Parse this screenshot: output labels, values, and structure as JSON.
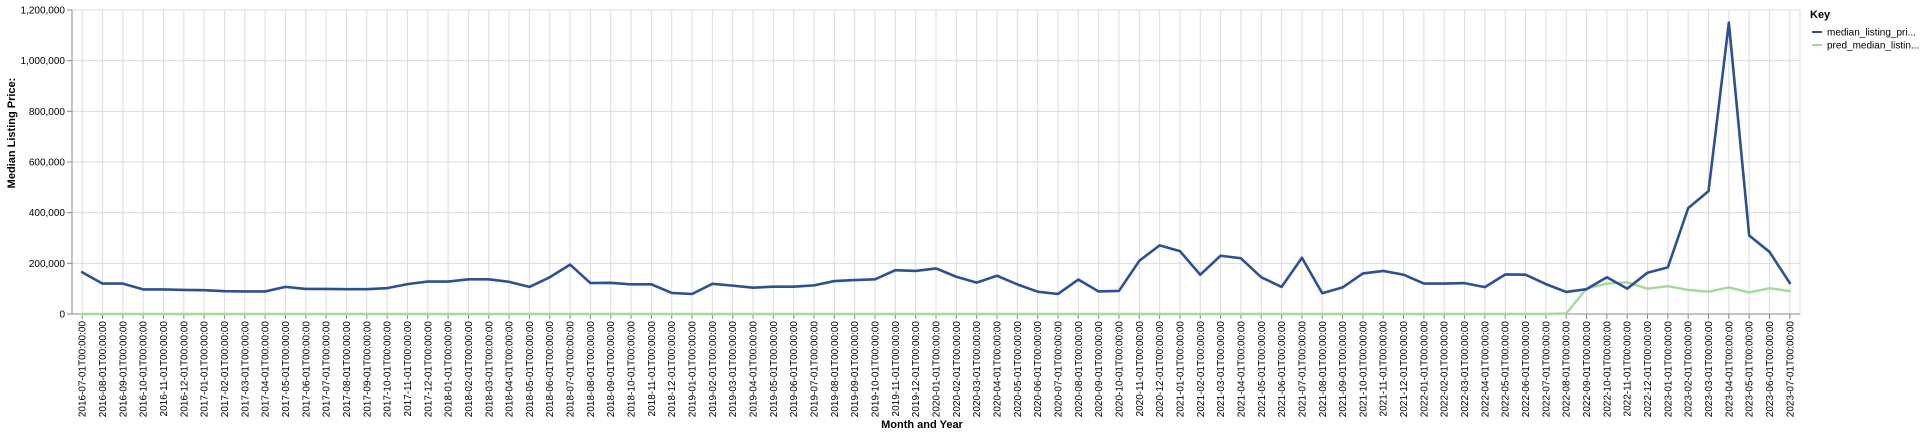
{
  "chart_data": {
    "type": "line",
    "xlabel": "Month and Year",
    "ylabel": "Median Listing Price:",
    "ylim": [
      0,
      1200000
    ],
    "yticks": [
      "0",
      "200,000",
      "400,000",
      "600,000",
      "800,000",
      "1,000,000",
      "1,200,000"
    ],
    "grid": true,
    "legend": {
      "title": "Key",
      "placement": "top-right",
      "entries": [
        "median_listing_pri...",
        "pred_median_listin..."
      ]
    },
    "x": [
      "2016-07-01T00:00:00",
      "2016-08-01T00:00:00",
      "2016-09-01T00:00:00",
      "2016-10-01T00:00:00",
      "2016-11-01T00:00:00",
      "2016-12-01T00:00:00",
      "2017-01-01T00:00:00",
      "2017-02-01T00:00:00",
      "2017-03-01T00:00:00",
      "2017-04-01T00:00:00",
      "2017-05-01T00:00:00",
      "2017-06-01T00:00:00",
      "2017-07-01T00:00:00",
      "2017-08-01T00:00:00",
      "2017-09-01T00:00:00",
      "2017-10-01T00:00:00",
      "2017-11-01T00:00:00",
      "2017-12-01T00:00:00",
      "2018-01-01T00:00:00",
      "2018-02-01T00:00:00",
      "2018-03-01T00:00:00",
      "2018-04-01T00:00:00",
      "2018-05-01T00:00:00",
      "2018-06-01T00:00:00",
      "2018-07-01T00:00:00",
      "2018-08-01T00:00:00",
      "2018-09-01T00:00:00",
      "2018-10-01T00:00:00",
      "2018-11-01T00:00:00",
      "2018-12-01T00:00:00",
      "2019-01-01T00:00:00",
      "2019-02-01T00:00:00",
      "2019-03-01T00:00:00",
      "2019-04-01T00:00:00",
      "2019-05-01T00:00:00",
      "2019-06-01T00:00:00",
      "2019-07-01T00:00:00",
      "2019-08-01T00:00:00",
      "2019-09-01T00:00:00",
      "2019-10-01T00:00:00",
      "2019-11-01T00:00:00",
      "2019-12-01T00:00:00",
      "2020-01-01T00:00:00",
      "2020-02-01T00:00:00",
      "2020-03-01T00:00:00",
      "2020-04-01T00:00:00",
      "2020-05-01T00:00:00",
      "2020-06-01T00:00:00",
      "2020-07-01T00:00:00",
      "2020-08-01T00:00:00",
      "2020-09-01T00:00:00",
      "2020-10-01T00:00:00",
      "2020-11-01T00:00:00",
      "2020-12-01T00:00:00",
      "2021-01-01T00:00:00",
      "2021-02-01T00:00:00",
      "2021-03-01T00:00:00",
      "2021-04-01T00:00:00",
      "2021-05-01T00:00:00",
      "2021-06-01T00:00:00",
      "2021-07-01T00:00:00",
      "2021-08-01T00:00:00",
      "2021-09-01T00:00:00",
      "2021-10-01T00:00:00",
      "2021-11-01T00:00:00",
      "2021-12-01T00:00:00",
      "2022-01-01T00:00:00",
      "2022-02-01T00:00:00",
      "2022-03-01T00:00:00",
      "2022-04-01T00:00:00",
      "2022-05-01T00:00:00",
      "2022-06-01T00:00:00",
      "2022-07-01T00:00:00",
      "2022-08-01T00:00:00",
      "2022-09-01T00:00:00",
      "2022-10-01T00:00:00",
      "2022-11-01T00:00:00",
      "2022-12-01T00:00:00",
      "2023-01-01T00:00:00",
      "2023-02-01T00:00:00",
      "2023-03-01T00:00:00",
      "2023-04-01T00:00:00",
      "2023-05-01T00:00:00",
      "2023-06-01T00:00:00",
      "2023-07-01T00:00:00"
    ],
    "series": [
      {
        "name": "median_listing_pri...",
        "color": "#2c5191",
        "values": [
          165000,
          120000,
          120000,
          97000,
          97000,
          95000,
          94000,
          90000,
          89000,
          89000,
          107000,
          99000,
          99000,
          98000,
          98000,
          102000,
          118000,
          128000,
          128000,
          137000,
          137000,
          127000,
          107000,
          145000,
          195000,
          122000,
          123000,
          117000,
          117000,
          83000,
          79000,
          119000,
          112000,
          104000,
          108000,
          108000,
          113000,
          130000,
          134000,
          137000,
          173000,
          170000,
          180000,
          147000,
          124000,
          151000,
          117000,
          88000,
          79000,
          136000,
          89000,
          91000,
          210000,
          271000,
          248000,
          155000,
          230000,
          220000,
          145000,
          107000,
          222000,
          82000,
          105000,
          160000,
          170000,
          155000,
          120000,
          120000,
          122000,
          106000,
          156000,
          155000,
          118000,
          87000,
          98000,
          145000,
          100000,
          163000,
          184000,
          418000,
          485000,
          1150000,
          310000,
          245000,
          122000
        ]
      },
      {
        "name": "pred_median_listin...",
        "color": "#a3da9b",
        "values": [
          0,
          0,
          0,
          0,
          0,
          0,
          0,
          0,
          0,
          0,
          0,
          0,
          0,
          0,
          0,
          0,
          0,
          0,
          0,
          0,
          0,
          0,
          0,
          0,
          0,
          0,
          0,
          0,
          0,
          0,
          0,
          0,
          0,
          0,
          0,
          0,
          0,
          0,
          0,
          0,
          0,
          0,
          0,
          0,
          0,
          0,
          0,
          0,
          0,
          0,
          0,
          0,
          0,
          0,
          0,
          0,
          0,
          0,
          0,
          0,
          0,
          0,
          0,
          0,
          0,
          0,
          0,
          0,
          0,
          0,
          0,
          0,
          0,
          2000,
          100000,
          120000,
          125000,
          100000,
          110000,
          95000,
          88000,
          105000,
          85000,
          102000,
          90000
        ]
      }
    ]
  }
}
